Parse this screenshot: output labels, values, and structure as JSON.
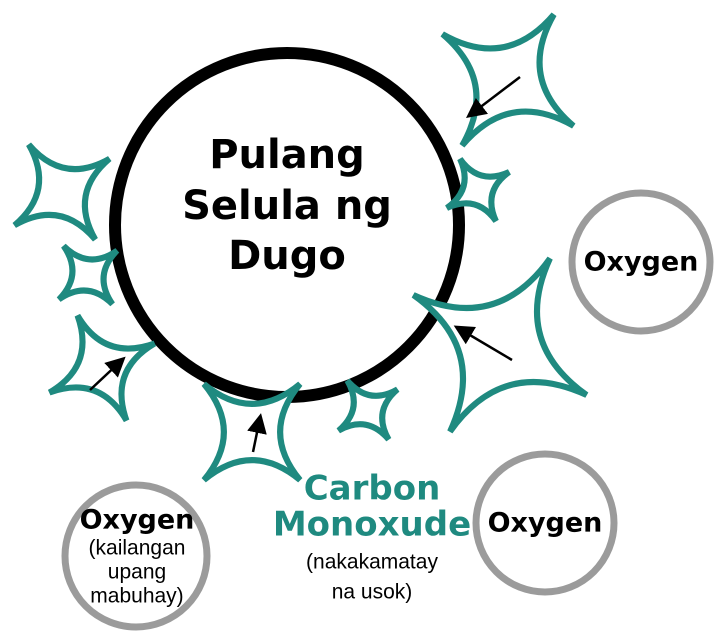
{
  "cell": {
    "label_lines": [
      "Pulang",
      "Selula ng",
      "Dugo"
    ]
  },
  "oxygen": [
    {
      "label": "Oxygen"
    },
    {
      "label": "Oxygen"
    },
    {
      "label": "Oxygen",
      "note_lines": [
        "(kailangan",
        "upang",
        "mabuhay)"
      ]
    }
  ],
  "carbon_monoxide": {
    "label_lines": [
      "Carbon",
      "Monoxude"
    ],
    "note_lines": [
      "(nakakamatay",
      "na usok)"
    ]
  }
}
